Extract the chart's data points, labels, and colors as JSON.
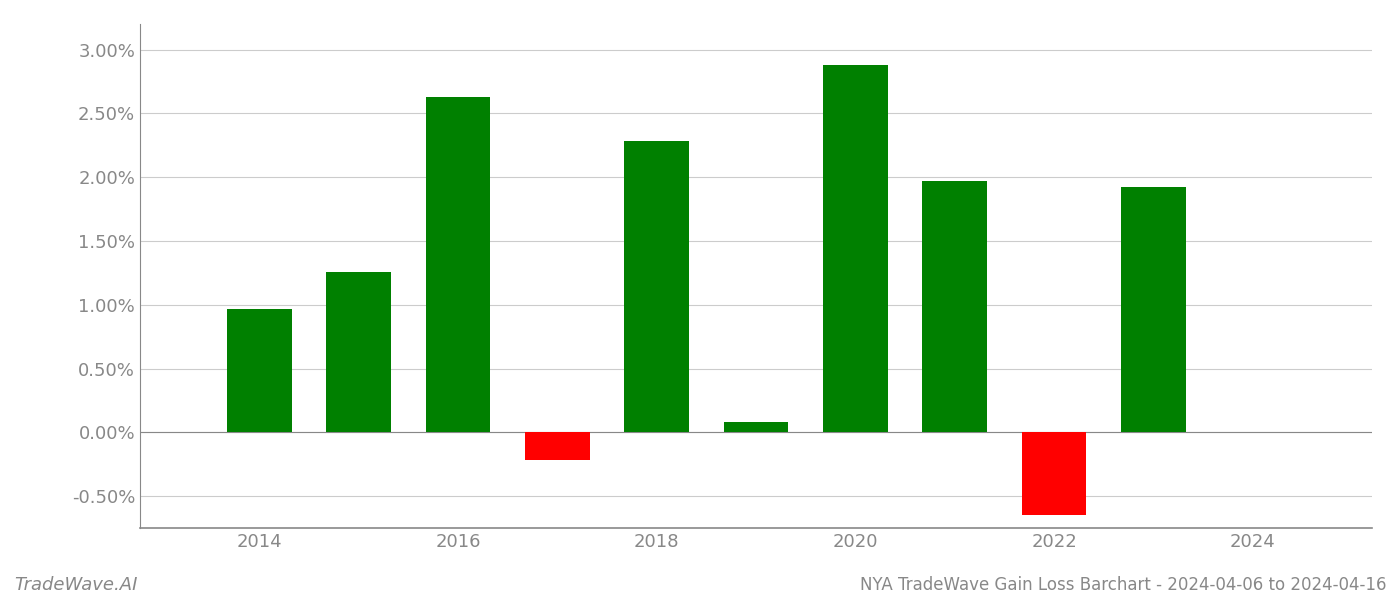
{
  "years": [
    2014,
    2015,
    2016,
    2017,
    2018,
    2019,
    2020,
    2021,
    2022,
    2023
  ],
  "values": [
    0.97,
    1.26,
    2.63,
    -0.22,
    2.28,
    0.08,
    2.88,
    1.97,
    -0.65,
    1.92
  ],
  "colors": [
    "#008000",
    "#008000",
    "#008000",
    "#ff0000",
    "#008000",
    "#008000",
    "#008000",
    "#008000",
    "#ff0000",
    "#008000"
  ],
  "title": "NYA TradeWave Gain Loss Barchart - 2024-04-06 to 2024-04-16",
  "watermark": "TradeWave.AI",
  "ylim_min": -0.75,
  "ylim_max": 3.2,
  "yticks": [
    -0.5,
    0.0,
    0.5,
    1.0,
    1.5,
    2.0,
    2.5,
    3.0
  ],
  "background_color": "#ffffff",
  "grid_color": "#cccccc",
  "bar_width": 0.65,
  "title_fontsize": 12,
  "tick_fontsize": 13,
  "watermark_fontsize": 13,
  "xlim_min": 2012.8,
  "xlim_max": 2025.2,
  "xticks": [
    2014,
    2016,
    2018,
    2020,
    2022,
    2024
  ]
}
